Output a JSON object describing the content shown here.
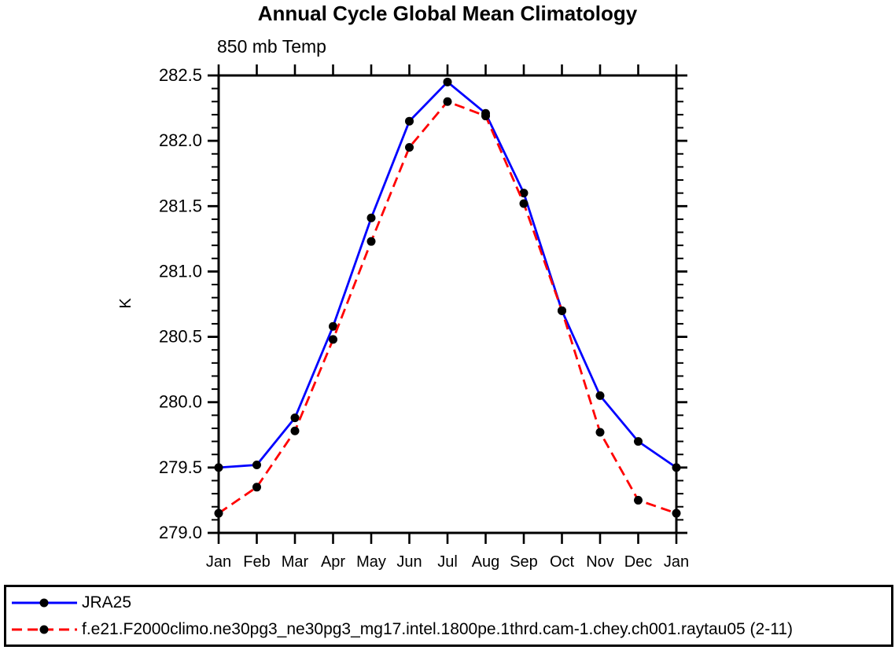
{
  "chart_data": {
    "type": "line",
    "title": "Annual Cycle Global Mean Climatology",
    "subtitle": "850 mb Temp",
    "ylabel": "K",
    "categories": [
      "Jan",
      "Feb",
      "Mar",
      "Apr",
      "May",
      "Jun",
      "Jul",
      "Aug",
      "Sep",
      "Oct",
      "Nov",
      "Dec",
      "Jan"
    ],
    "series": [
      {
        "name": "JRA25",
        "color": "#0000ff",
        "line_style": "solid",
        "marker": "filled-circle",
        "marker_color": "#000000",
        "values": [
          279.5,
          279.52,
          279.88,
          280.58,
          281.41,
          282.15,
          282.45,
          282.21,
          281.6,
          280.7,
          280.05,
          279.7,
          279.5
        ]
      },
      {
        "name": "f.e21.F2000climo.ne30pg3_ne30pg3_mg17.intel.1800pe.1thrd.cam-1.chey.ch001.raytau05 (2-11)",
        "color": "#ff0000",
        "line_style": "dashed",
        "marker": "filled-circle",
        "marker_color": "#000000",
        "values": [
          279.15,
          279.35,
          279.78,
          280.48,
          281.23,
          281.95,
          282.3,
          282.19,
          281.52,
          280.7,
          279.77,
          279.25,
          279.15
        ]
      }
    ],
    "ylim": [
      279.0,
      282.5
    ],
    "ytick_major_interval": 0.5,
    "ytick_minor_interval": 0.1,
    "ytick_labels": [
      "279.0",
      "279.5",
      "280.0",
      "280.5",
      "281.0",
      "281.5",
      "282.0",
      "282.5"
    ],
    "grid": false,
    "frame": "box-with-outward-ticks",
    "legend_position": "bottom-outside-box"
  }
}
